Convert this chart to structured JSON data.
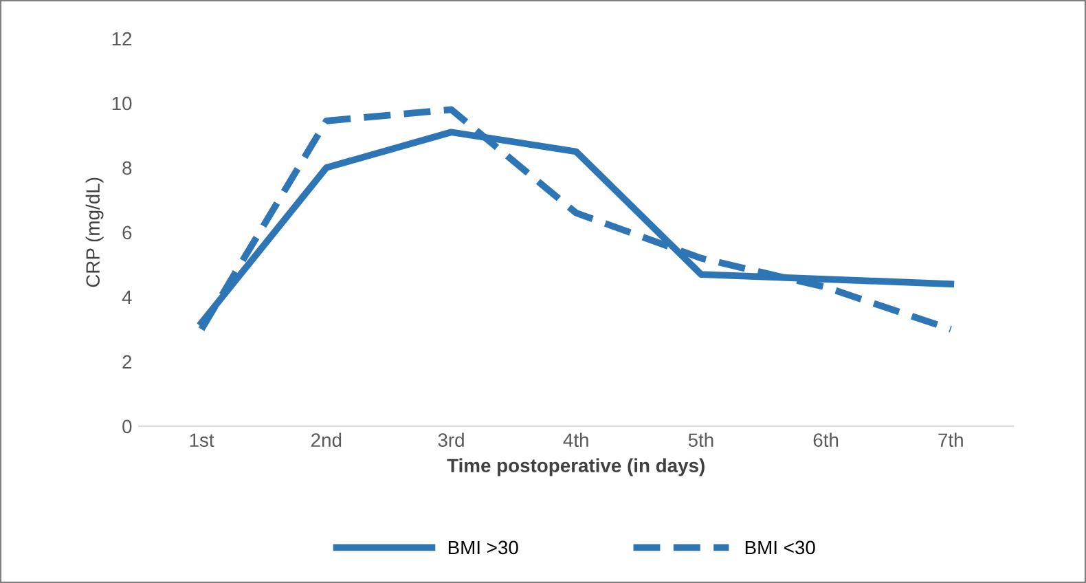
{
  "chart_data": {
    "type": "line",
    "xlabel": "Time postoperative (in days)",
    "ylabel": "CRP (mg/dL)",
    "categories": [
      "1st",
      "2nd",
      "3rd",
      "4th",
      "5th",
      "6th",
      "7th"
    ],
    "series": [
      {
        "name": "BMI >30",
        "color": "#2e75b6",
        "line_style": "solid",
        "values": [
          3.2,
          8.0,
          9.1,
          8.5,
          4.7,
          4.55,
          4.4
        ]
      },
      {
        "name": "BMI <30",
        "color": "#2e75b6",
        "line_style": "dashed",
        "values": [
          3.0,
          9.45,
          9.8,
          6.6,
          5.2,
          4.3,
          3.0
        ]
      }
    ],
    "ylim": [
      0,
      12
    ],
    "yticks": [
      0,
      2,
      4,
      6,
      8,
      10,
      12
    ],
    "grid": false,
    "legend": "bottom",
    "marker": "none"
  }
}
